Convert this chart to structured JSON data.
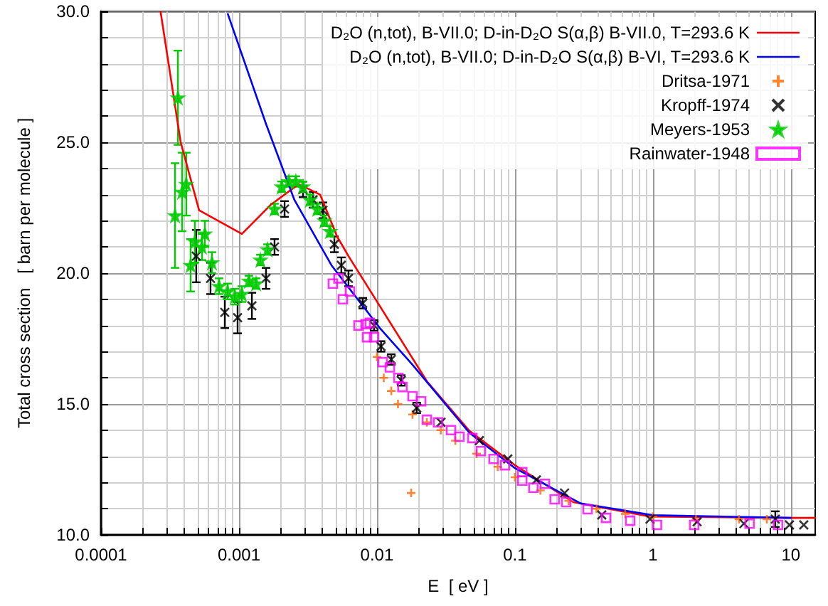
{
  "chart_data": {
    "type": "line",
    "xlabel": "E  [ eV ]",
    "ylabel": "Total cross section   [ barn per molecule ]",
    "log": "x",
    "grid": true,
    "legend": "top right",
    "xlim": [
      0.0001,
      15
    ],
    "ylim": [
      10,
      30
    ],
    "xticks": [
      0.0001,
      {
        "value": 0.0002,
        "label": null
      },
      {
        "value": 0.0003,
        "label": null
      },
      {
        "value": 0.0004,
        "label": null
      },
      {
        "value": 0.0005,
        "label": null
      },
      {
        "value": 0.0006,
        "label": null
      },
      {
        "value": 0.0007,
        "label": null
      },
      {
        "value": 0.0008,
        "label": null
      },
      {
        "value": 0.0009,
        "label": null
      },
      0.001,
      {
        "value": 0.002,
        "label": null
      },
      {
        "value": 0.003,
        "label": null
      },
      {
        "value": 0.004,
        "label": null
      },
      {
        "value": 0.005,
        "label": null
      },
      {
        "value": 0.006,
        "label": null
      },
      {
        "value": 0.007,
        "label": null
      },
      {
        "value": 0.008,
        "label": null
      },
      {
        "value": 0.009,
        "label": null
      },
      0.01,
      {
        "value": 0.02,
        "label": null
      },
      {
        "value": 0.03,
        "label": null
      },
      {
        "value": 0.04,
        "label": null
      },
      {
        "value": 0.05,
        "label": null
      },
      {
        "value": 0.06,
        "label": null
      },
      {
        "value": 0.07,
        "label": null
      },
      {
        "value": 0.08,
        "label": null
      },
      {
        "value": 0.09,
        "label": null
      },
      0.1,
      {
        "value": 0.2,
        "label": null
      },
      {
        "value": 0.3,
        "label": null
      },
      {
        "value": 0.4,
        "label": null
      },
      {
        "value": 0.5,
        "label": null
      },
      {
        "value": 0.6,
        "label": null
      },
      {
        "value": 0.7,
        "label": null
      },
      {
        "value": 0.8,
        "label": null
      },
      {
        "value": 0.9,
        "label": null
      },
      1,
      {
        "value": 2,
        "label": null
      },
      {
        "value": 3,
        "label": null
      },
      {
        "value": 4,
        "label": null
      },
      {
        "value": 5,
        "label": null
      },
      {
        "value": 6,
        "label": null
      },
      {
        "value": 7,
        "label": null
      },
      {
        "value": 8,
        "label": null
      },
      {
        "value": 9,
        "label": null
      },
      10
    ],
    "yticks": [
      {
        "value": 10,
        "label": "10.0"
      },
      {
        "value": 11,
        "label": null
      },
      {
        "value": 12,
        "label": null
      },
      {
        "value": 13,
        "label": null
      },
      {
        "value": 14,
        "label": null
      },
      {
        "value": 15,
        "label": "15.0"
      },
      {
        "value": 16,
        "label": null
      },
      {
        "value": 17,
        "label": null
      },
      {
        "value": 18,
        "label": null
      },
      {
        "value": 19,
        "label": null
      },
      {
        "value": 20,
        "label": "20.0"
      },
      {
        "value": 21,
        "label": null
      },
      {
        "value": 22,
        "label": null
      },
      {
        "value": 23,
        "label": null
      },
      {
        "value": 24,
        "label": null
      },
      {
        "value": 25,
        "label": "25.0"
      },
      {
        "value": 26,
        "label": null
      },
      {
        "value": 27,
        "label": null
      },
      {
        "value": 28,
        "label": null
      },
      {
        "value": 29,
        "label": null
      },
      {
        "value": 30,
        "label": "30.0"
      }
    ],
    "series": [
      {
        "name": "D₂O (n,tot), B-VII.0; D-in-D₂O S(α,β) B-VII.0, T=293.6 K",
        "color": "#ff0000",
        "marker": "none",
        "x": [
          0.00027,
          0.000378,
          0.000514,
          0.00105,
          0.00169,
          0.00271,
          0.00387,
          0.00514,
          0.00622,
          0.023,
          0.0468,
          0.1,
          0.265,
          0.95,
          10,
          15
        ],
        "values": [
          30,
          25,
          22.4,
          21.5,
          22.6,
          23.4,
          23.0,
          21.4,
          20.65,
          15.87,
          13.97,
          12.66,
          11.25,
          10.7,
          10.65,
          10.65
        ]
      },
      {
        "name": "D₂O (n,tot), B-VII.0; D-in-D₂O S(α,β) B-VI, T=293.6 K",
        "color": "#0000ff",
        "marker": "none",
        "x": [
          0.00083,
          0.00157,
          0.00252,
          0.00468,
          0.0105,
          0.0181,
          0.0468,
          0.1,
          0.3,
          1,
          10
        ],
        "values": [
          29.9,
          25.7,
          22.8,
          20.3,
          17.9,
          16.5,
          13.9,
          12.55,
          11.2,
          10.75,
          10.65
        ]
      },
      {
        "name": "Dritsa-1971",
        "type": "scatter",
        "color": "#ff6600",
        "marker": "plus",
        "x": [
          0.01,
          0.0112,
          0.0127,
          0.0142,
          0.0177,
          0.0181,
          0.023,
          0.029,
          0.037,
          0.0527,
          0.075,
          0.1,
          0.153,
          0.245,
          0.39,
          0.63,
          1.0,
          2.05,
          4.2,
          6.7
        ],
        "values": [
          16.8,
          16.0,
          15.5,
          15.0,
          11.6,
          14.6,
          14.3,
          14.0,
          13.6,
          13.1,
          12.6,
          12.2,
          11.7,
          11.3,
          11.0,
          10.8,
          10.7,
          10.6,
          10.6,
          10.6
        ]
      },
      {
        "name": "Kropff-1974",
        "type": "scatter",
        "color": "#000000",
        "marker": "cross",
        "x": [
          0.00049,
          0.000622,
          0.000789,
          0.000977,
          0.00124,
          0.00157,
          0.00181,
          0.00214,
          0.00291,
          0.00344,
          0.00406,
          0.00491,
          0.00552,
          0.00622,
          0.00789,
          0.00953,
          0.0107,
          0.0127,
          0.015,
          0.0194,
          0.0291,
          0.0552,
          0.0887,
          0.143,
          0.229,
          0.426,
          0.953,
          2.09,
          4.57,
          7.71,
          9.77,
          12.4
        ],
        "values": [
          20.65,
          19.8,
          18.5,
          18.3,
          18.75,
          19.8,
          21.0,
          22.45,
          23.2,
          22.8,
          22.4,
          21.1,
          20.3,
          19.8,
          18.85,
          18.0,
          17.2,
          16.7,
          15.9,
          14.85,
          14.3,
          13.6,
          12.9,
          12.1,
          11.6,
          10.76,
          10.6,
          10.5,
          10.43,
          10.6,
          10.38,
          10.38
        ],
        "errors": [
          1.0,
          0.6,
          0.6,
          0.6,
          0.5,
          0.4,
          0.3,
          0.3,
          0.3,
          0.3,
          0.3,
          0.3,
          0.3,
          0.3,
          0.2,
          0.2,
          0.2,
          0.2,
          0.2,
          0.2,
          null,
          null,
          null,
          null,
          null,
          null,
          null,
          null,
          null,
          0.3,
          null,
          null
        ]
      },
      {
        "name": "Meyers-1953",
        "type": "scatter",
        "color": "#00cc00",
        "marker": "star",
        "x": [
          0.000344,
          0.000361,
          0.000387,
          0.000415,
          0.000446,
          0.000479,
          0.000539,
          0.000566,
          0.000637,
          0.000717,
          0.000827,
          0.000932,
          0.00105,
          0.00118,
          0.00133,
          0.00143,
          0.00161,
          0.00181,
          0.00204,
          0.0023,
          0.00258,
          0.00291,
          0.00327,
          0.00369,
          0.00416,
          0.00457
        ],
        "values": [
          22.2,
          26.7,
          23.1,
          23.4,
          20.3,
          21.2,
          21.0,
          21.5,
          20.4,
          19.5,
          19.3,
          19.1,
          19.2,
          19.7,
          19.6,
          20.5,
          20.9,
          22.45,
          23.3,
          23.5,
          23.5,
          23.3,
          22.8,
          22.45,
          22.0,
          21.6
        ],
        "errors": [
          2.0,
          1.8,
          1.5,
          1.2,
          1.0,
          0.8,
          0.5,
          0.5,
          0.4,
          0.3,
          0.3,
          0.3,
          0.3,
          0.2,
          0.2,
          0.2,
          0.2,
          0.2,
          0.2,
          0.2,
          0.2,
          0.2,
          0.2,
          0.2,
          0.2,
          0.2
        ]
      },
      {
        "name": "Rainwater-1948",
        "type": "scatter",
        "color": "#ff00ff",
        "marker": "square",
        "x": [
          0.00479,
          0.00526,
          0.00566,
          0.00637,
          0.00735,
          0.00827,
          0.00847,
          0.00888,
          0.00953,
          0.011,
          0.0124,
          0.0143,
          0.0153,
          0.0181,
          0.0209,
          0.023,
          0.0277,
          0.0344,
          0.0396,
          0.0491,
          0.0566,
          0.07,
          0.0847,
          0.113,
          0.113,
          0.136,
          0.165,
          0.194,
          0.235,
          0.336,
          0.457,
          0.684,
          1.07,
          1.99,
          5.02,
          8.07
        ],
        "values": [
          19.6,
          19.8,
          19.0,
          19.3,
          18.0,
          18.05,
          17.55,
          18.1,
          17.55,
          16.6,
          16.4,
          16.0,
          15.65,
          15.3,
          15.1,
          14.4,
          14.3,
          14.0,
          13.75,
          13.7,
          13.2,
          12.9,
          12.66,
          12.4,
          12.07,
          11.8,
          11.95,
          11.36,
          11.25,
          10.98,
          10.65,
          10.54,
          10.38,
          10.38,
          10.43,
          10.38
        ]
      }
    ]
  }
}
